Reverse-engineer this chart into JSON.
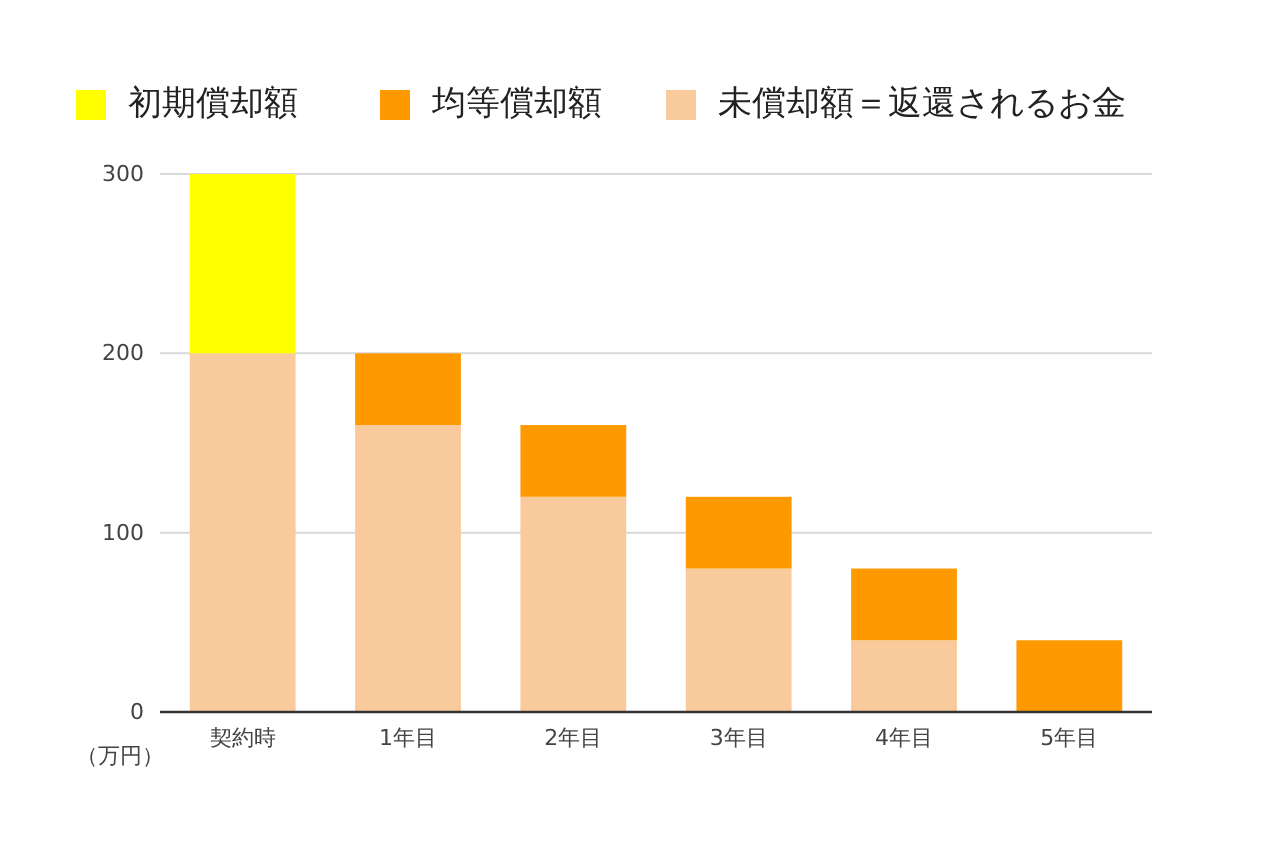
{
  "chart_data": {
    "type": "bar",
    "stacked": true,
    "categories": [
      "契約時",
      "1年目",
      "2年目",
      "3年目",
      "4年目",
      "5年目"
    ],
    "series": [
      {
        "name": "未償却額＝返還されるお金",
        "color": "#f9cb9c",
        "values": [
          200,
          160,
          120,
          80,
          40,
          0
        ]
      },
      {
        "name": "均等償却額",
        "color": "#ff9900",
        "values": [
          0,
          40,
          40,
          40,
          40,
          40
        ]
      },
      {
        "name": "初期償却額",
        "color": "#ffff00",
        "values": [
          100,
          0,
          0,
          0,
          0,
          0
        ]
      }
    ],
    "ylabel": "（万円）",
    "ylim": [
      0,
      300
    ],
    "yticks": [
      0,
      100,
      200,
      300
    ],
    "grid": "y",
    "legend": "top"
  }
}
